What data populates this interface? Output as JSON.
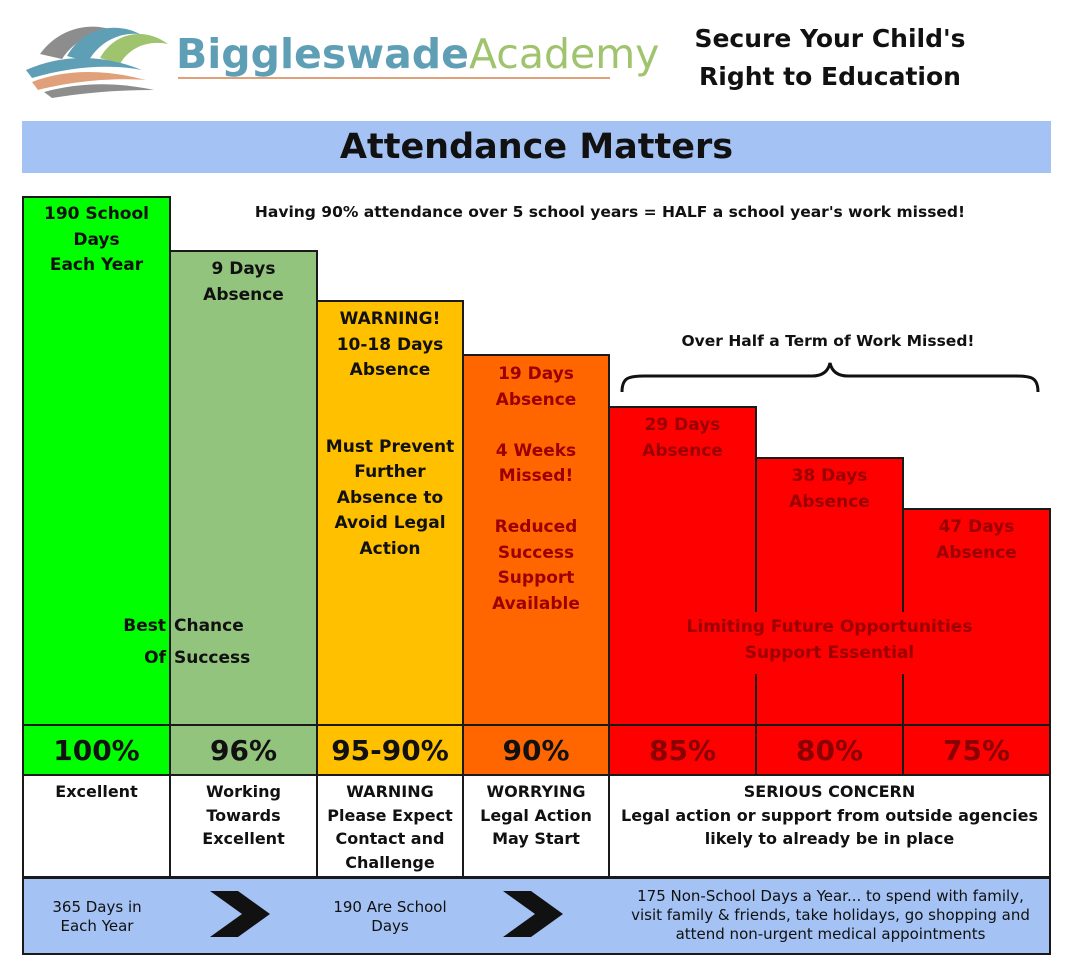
{
  "header": {
    "logo_part1": "Biggleswade",
    "logo_part2": "Academy",
    "slogan_line1": "Secure Your Child's",
    "slogan_line2": "Right to Education"
  },
  "title": "Attendance Matters",
  "headline": "Having 90% attendance over 5 school years = HALF a school year's work missed!",
  "brace_label": "Over Half a Term of Work Missed!",
  "colors": {
    "excellent": "#00ff00",
    "working": "#93c47d",
    "warning": "#ffc000",
    "worrying": "#ff6600",
    "serious": "#ff0000",
    "band": "#a4c2f4"
  },
  "chart_data": {
    "type": "bar",
    "categories": [
      "100%",
      "96%",
      "95-90%",
      "90%",
      "85%",
      "80%",
      "75%"
    ],
    "values": [
      100,
      96,
      92.5,
      90,
      85,
      80,
      75
    ],
    "ylim": [
      0,
      100
    ],
    "bars": [
      {
        "percent": "100%",
        "lines": [
          "190 School",
          "Days",
          "Each Year"
        ]
      },
      {
        "percent": "96%",
        "lines": [
          "9 Days",
          "Absence"
        ]
      },
      {
        "percent": "95-90%",
        "lines": [
          "WARNING!",
          "10-18 Days",
          "Absence",
          "",
          "",
          "Must Prevent",
          "Further",
          "Absence to",
          "Avoid Legal",
          "Action"
        ]
      },
      {
        "percent": "90%",
        "lines": [
          "19 Days",
          "Absence",
          "",
          "4 Weeks",
          "Missed!",
          "",
          "Reduced",
          "Success",
          "Support",
          "Available"
        ]
      },
      {
        "percent": "85%",
        "lines": [
          "29 Days",
          "Absence"
        ]
      },
      {
        "percent": "80%",
        "lines": [
          "38 Days",
          "Absence"
        ]
      },
      {
        "percent": "75%",
        "lines": [
          "47 Days",
          "Absence"
        ]
      }
    ],
    "annotations": {
      "best_left_1": "Best",
      "best_right_1": "Chance",
      "best_left_2": "Of",
      "best_right_2": "Success",
      "limiting_1": "Limiting Future Opportunities",
      "limiting_2": "Support Essential"
    }
  },
  "statuses": [
    {
      "lines": [
        "Excellent"
      ]
    },
    {
      "lines": [
        "Working",
        "Towards",
        "Excellent"
      ]
    },
    {
      "lines": [
        "WARNING",
        "Please Expect",
        "Contact and",
        "Challenge"
      ]
    },
    {
      "lines": [
        "WORRYING",
        "Legal Action",
        "May Start"
      ]
    },
    {
      "lines": [
        "SERIOUS CONCERN",
        "Legal action or support from outside agencies",
        "likely to already be in place"
      ]
    }
  ],
  "footer": {
    "left_lines": [
      "365 Days in",
      "Each Year"
    ],
    "middle_lines": [
      "190 Are School",
      "Days"
    ],
    "right_lines": [
      "175 Non-School Days a Year... to spend with family,",
      "visit family & friends, take holidays, go shopping and",
      "attend non-urgent medical appointments"
    ]
  }
}
